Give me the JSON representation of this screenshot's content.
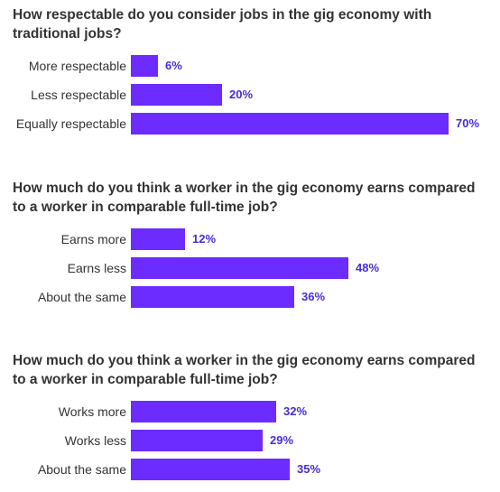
{
  "style": {
    "bar_color": "#6c2bff",
    "label_color": "#4a2bd6"
  },
  "chart_data": [
    {
      "type": "bar",
      "orientation": "horizontal",
      "title": "How respectable do you consider jobs in the gig economy with traditional jobs?",
      "categories": [
        "More respectable",
        "Less respectable",
        "Equally respectable"
      ],
      "values": [
        6,
        20,
        70
      ],
      "value_labels": [
        "6%",
        "20%",
        "70%"
      ],
      "unit": "%",
      "xlim": [
        0,
        70
      ],
      "grid": false
    },
    {
      "type": "bar",
      "orientation": "horizontal",
      "title": "How much do you think a worker in the gig economy earns compared to a worker in comparable full-time job?",
      "categories": [
        "Earns more",
        "Earns less",
        "About the same"
      ],
      "values": [
        12,
        48,
        36
      ],
      "value_labels": [
        "12%",
        "48%",
        "36%"
      ],
      "unit": "%",
      "xlim": [
        0,
        70
      ],
      "grid": false
    },
    {
      "type": "bar",
      "orientation": "horizontal",
      "title": "How much do you think a worker in the gig economy earns compared to a worker in comparable full-time job?",
      "categories": [
        "Works more",
        "Works less",
        "About the same"
      ],
      "values": [
        32,
        29,
        35
      ],
      "value_labels": [
        "32%",
        "29%",
        "35%"
      ],
      "unit": "%",
      "xlim": [
        0,
        70
      ],
      "grid": false
    }
  ]
}
